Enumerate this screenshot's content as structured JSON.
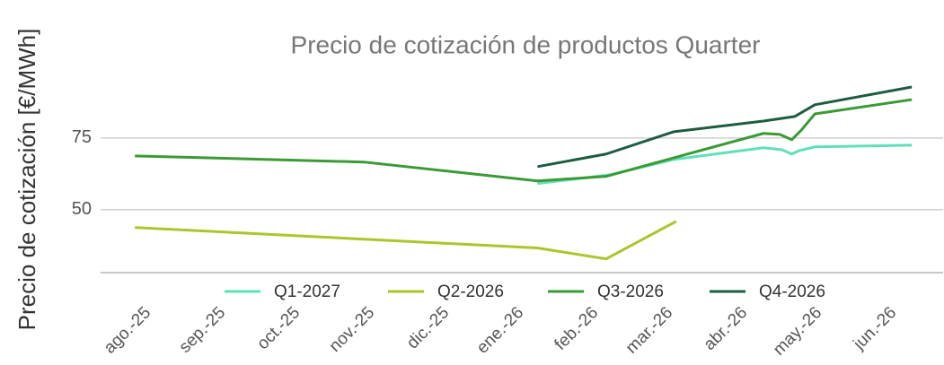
{
  "chart_data": {
    "type": "line",
    "title": "Precio de cotización de productos Quarter",
    "y_label": "Precio de cotización [€/MWh]",
    "xlim": [
      -0.64,
      10.66
    ],
    "xticks": [
      {
        "value": 0,
        "label": "ago.-25"
      },
      {
        "value": 1,
        "label": "sep.-25"
      },
      {
        "value": 2,
        "label": "oct.-25"
      },
      {
        "value": 3,
        "label": "nov.-25"
      },
      {
        "value": 4,
        "label": "dic.-25"
      },
      {
        "value": 5,
        "label": "ene.-26"
      },
      {
        "value": 6,
        "label": "feb.-26"
      },
      {
        "value": 7,
        "label": "mar.-26"
      },
      {
        "value": 8,
        "label": "abr.-26"
      },
      {
        "value": 9,
        "label": "may.-26"
      },
      {
        "value": 10,
        "label": "jun.-26"
      }
    ],
    "ylim": [
      28,
      100
    ],
    "yticks": [
      50,
      75
    ],
    "grid": true,
    "legend": "bottom",
    "series": [
      {
        "name": "Q1-2027",
        "color": "#5fe0b9",
        "x": [
          5.22,
          6.2,
          7.05,
          8.25,
          8.5,
          8.63,
          8.73,
          8.94,
          10.24
        ],
        "values": [
          59.1,
          62.2,
          67.5,
          71.6,
          70.9,
          69.4,
          70.6,
          71.9,
          72.5
        ]
      },
      {
        "name": "Q2-2026",
        "color": "#a9c62b",
        "x": [
          -0.18,
          5.22,
          6.14,
          7.08
        ],
        "values": [
          43.75,
          36.6,
          32.8,
          45.9
        ]
      },
      {
        "name": "Q3-2026",
        "color": "#3a9a35",
        "x": [
          -0.18,
          2.89,
          5.22,
          6.14,
          7.05,
          8.25,
          8.47,
          8.63,
          8.76,
          8.94,
          10.24
        ],
        "values": [
          68.75,
          66.6,
          60,
          61.6,
          68.1,
          76.6,
          76.25,
          74.4,
          77.8,
          83.4,
          88.4
        ]
      },
      {
        "name": "Q4-2026",
        "color": "#1e5c42",
        "x": [
          5.22,
          6.14,
          7.05,
          8.25,
          8.67,
          8.94,
          10.24
        ],
        "values": [
          65,
          69.4,
          77.2,
          80.9,
          82.5,
          86.6,
          92.8
        ]
      }
    ]
  }
}
